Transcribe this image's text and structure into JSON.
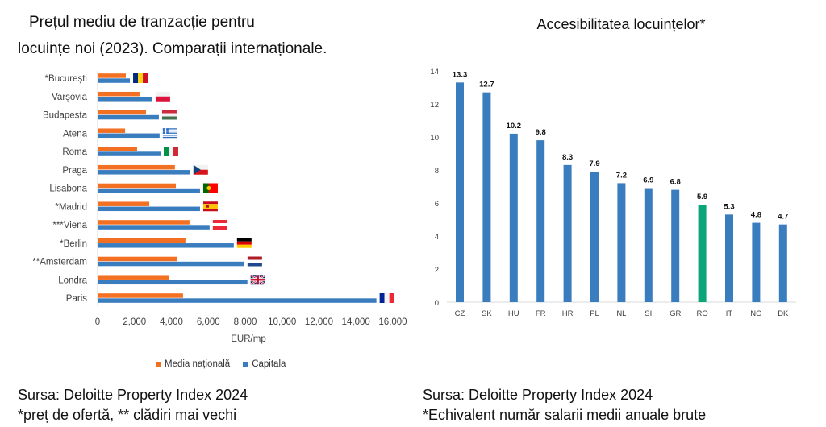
{
  "left_title": {
    "line1": "Prețul mediu de tranzacție pentru",
    "line2": "locuințe noi (2023). Comparații internaționale."
  },
  "right_title": "Accesibilitatea locuințelor*",
  "left_footer": {
    "line1": "Sursa: Deloitte Property Index 2024",
    "line2": "*preț de ofertă, ** clădiri mai vechi"
  },
  "right_footer": {
    "line1": "Sursa: Deloitte Property Index 2024",
    "line2": "*Echivalent număr salarii medii anuale brute"
  },
  "colors": {
    "national": "#f36f21",
    "capital": "#3a7dbf",
    "romania_highlight": "#0aa67a",
    "axis": "#d9d9d9",
    "tick_text": "#404040"
  },
  "chart_data": [
    {
      "type": "bar",
      "orientation": "horizontal",
      "title": "Prețul mediu de tranzacție pentru locuințe noi (2023). Comparații internaționale.",
      "xlabel": "EUR/mp",
      "ylabel": "",
      "xlim": [
        0,
        16000
      ],
      "x_ticks": [
        0,
        2000,
        4000,
        6000,
        8000,
        10000,
        12000,
        14000,
        16000
      ],
      "x_tick_labels": [
        "0",
        "2,000",
        "4,000",
        "6,000",
        "8,000",
        "10,000",
        "12,000",
        "14,000",
        "16,000"
      ],
      "legend_position": "bottom",
      "grid": false,
      "categories": [
        "*București",
        "Varșovia",
        "Budapesta",
        "Atena",
        "Roma",
        "Praga",
        "Lisabona",
        "*Madrid",
        "***Viena",
        "*Berlin",
        "**Amsterdam",
        "Londra",
        "Paris"
      ],
      "flags": [
        "ro",
        "pl",
        "hu",
        "gr",
        "it",
        "cz",
        "pt",
        "es",
        "at",
        "de",
        "nl",
        "gb",
        "fr"
      ],
      "series": [
        {
          "name": "Media națională",
          "color": "#f36f21",
          "values": [
            1530,
            2270,
            2620,
            1490,
            2140,
            4190,
            4240,
            2800,
            4980,
            4760,
            4320,
            3890,
            4630
          ]
        },
        {
          "name": "Capitala",
          "color": "#3a7dbf",
          "values": [
            1750,
            2970,
            3320,
            3360,
            3410,
            5020,
            5550,
            5550,
            6070,
            7380,
            7950,
            8120,
            15110
          ]
        }
      ]
    },
    {
      "type": "bar",
      "orientation": "vertical",
      "title": "Accesibilitatea locuințelor*",
      "xlabel": "",
      "ylabel": "",
      "ylim": [
        0,
        14
      ],
      "y_ticks": [
        0,
        2,
        4,
        6,
        8,
        10,
        12,
        14
      ],
      "y_tick_labels": [
        "0",
        "2",
        "4",
        "6",
        "8",
        "10",
        "12",
        "14"
      ],
      "grid": false,
      "categories": [
        "CZ",
        "SK",
        "HU",
        "FR",
        "HR",
        "PL",
        "NL",
        "SI",
        "GR",
        "RO",
        "IT",
        "NO",
        "DK"
      ],
      "values": [
        13.3,
        12.7,
        10.2,
        9.8,
        8.3,
        7.9,
        7.2,
        6.9,
        6.8,
        5.9,
        5.3,
        4.8,
        4.7
      ],
      "value_labels": [
        "13.3",
        "12.7",
        "10.2",
        "9.8",
        "8.3",
        "7.9",
        "7.2",
        "6.9",
        "6.8",
        "5.9",
        "5.3",
        "4.8",
        "4.7"
      ],
      "highlight": "RO"
    }
  ]
}
